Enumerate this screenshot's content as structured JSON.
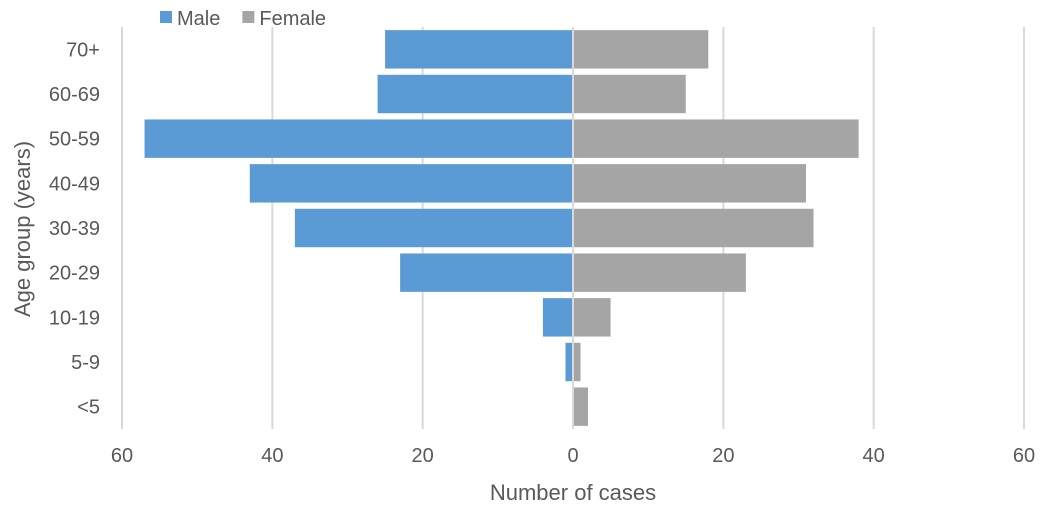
{
  "chart_data": {
    "type": "bar",
    "orientation": "horizontal",
    "layout": "population-pyramid",
    "title": "",
    "xlabel": "Number of cases",
    "ylabel": "Age group (years)",
    "xlim": [
      -60,
      60
    ],
    "x_ticks": [
      -60,
      -40,
      -20,
      0,
      20,
      40,
      60
    ],
    "x_tick_labels": [
      "60",
      "40",
      "20",
      "0",
      "20",
      "40",
      "60"
    ],
    "grid": "vertical",
    "legend_position": "top-left",
    "categories": [
      "70+",
      "60-69",
      "50-59",
      "40-49",
      "30-39",
      "20-29",
      "10-19",
      "5-9",
      "<5"
    ],
    "series": [
      {
        "name": "Male",
        "color": "#5b9bd5",
        "side": "left",
        "values": [
          25,
          26,
          57,
          43,
          37,
          23,
          4,
          1,
          0
        ]
      },
      {
        "name": "Female",
        "color": "#a5a5a5",
        "side": "right",
        "values": [
          18,
          15,
          38,
          31,
          32,
          23,
          5,
          1,
          2
        ]
      }
    ]
  }
}
